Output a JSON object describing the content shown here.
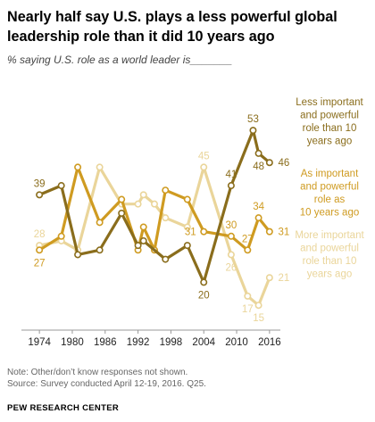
{
  "title": "Nearly half say U.S. plays a less powerful global leadership role than it did 10 years ago",
  "subtitle": "% saying U.S. role as a world leader is_______",
  "notes": {
    "note": "Note: Other/don’t know responses not shown.",
    "source": "Source: Survey conducted April 12-19, 2016. Q25.",
    "org": "PEW RESEARCH CENTER"
  },
  "colors": {
    "less": "#8a6d1c",
    "same": "#cf9b21",
    "more": "#ead59a",
    "axis": "#999999"
  },
  "chart_data": {
    "type": "line",
    "xlabel": "",
    "ylabel": "",
    "x_ticks": [
      "1974",
      "1980",
      "1986",
      "1992",
      "1998",
      "2004",
      "2010",
      "2016"
    ],
    "xlim": [
      1973,
      2017
    ],
    "ylim": [
      10,
      60
    ],
    "grid": false,
    "series": [
      {
        "key": "less",
        "name_lines": [
          "Less important",
          "and powerful",
          "role than 10",
          "years ago"
        ],
        "points": [
          {
            "x": 1974,
            "y": 39
          },
          {
            "x": 1978,
            "y": 41
          },
          {
            "x": 1981,
            "y": 26
          },
          {
            "x": 1985,
            "y": 27
          },
          {
            "x": 1989,
            "y": 35
          },
          {
            "x": 1992,
            "y": 28
          },
          {
            "x": 1993,
            "y": 29
          },
          {
            "x": 1997,
            "y": 25
          },
          {
            "x": 2001,
            "y": 28
          },
          {
            "x": 2004,
            "y": 20
          },
          {
            "x": 2009,
            "y": 41
          },
          {
            "x": 2013,
            "y": 53
          },
          {
            "x": 2014,
            "y": 48
          },
          {
            "x": 2016,
            "y": 46
          }
        ],
        "labels": [
          {
            "x": 1974,
            "text": "39",
            "pos": "above"
          },
          {
            "x": 2004,
            "text": "20",
            "pos": "below"
          },
          {
            "x": 2009,
            "text": "41",
            "pos": "above"
          },
          {
            "x": 2013,
            "text": "53",
            "pos": "above"
          },
          {
            "x": 2014,
            "text": "48",
            "pos": "below"
          },
          {
            "x": 2016,
            "text": "46",
            "pos": "right"
          }
        ]
      },
      {
        "key": "same",
        "name_lines": [
          "As important",
          "and powerful",
          "role as",
          "10 years ago"
        ],
        "points": [
          {
            "x": 1974,
            "y": 27
          },
          {
            "x": 1978,
            "y": 30
          },
          {
            "x": 1981,
            "y": 45
          },
          {
            "x": 1985,
            "y": 33
          },
          {
            "x": 1989,
            "y": 38
          },
          {
            "x": 1992,
            "y": 27
          },
          {
            "x": 1993,
            "y": 32
          },
          {
            "x": 1995,
            "y": 27
          },
          {
            "x": 1997,
            "y": 40
          },
          {
            "x": 2001,
            "y": 38
          },
          {
            "x": 2004,
            "y": 31
          },
          {
            "x": 2009,
            "y": 30
          },
          {
            "x": 2012,
            "y": 27
          },
          {
            "x": 2014,
            "y": 34
          },
          {
            "x": 2016,
            "y": 31
          }
        ],
        "labels": [
          {
            "x": 1974,
            "text": "27",
            "pos": "below"
          },
          {
            "x": 2004,
            "text": "31",
            "pos": "left"
          },
          {
            "x": 2009,
            "text": "30",
            "pos": "above"
          },
          {
            "x": 2012,
            "text": "27",
            "pos": "above"
          },
          {
            "x": 2014,
            "text": "34",
            "pos": "above"
          },
          {
            "x": 2016,
            "text": "31",
            "pos": "right"
          }
        ]
      },
      {
        "key": "more",
        "name_lines": [
          "More important",
          "and powerful",
          "role than 10",
          "years ago"
        ],
        "points": [
          {
            "x": 1974,
            "y": 28
          },
          {
            "x": 1978,
            "y": 29
          },
          {
            "x": 1981,
            "y": 27
          },
          {
            "x": 1985,
            "y": 45
          },
          {
            "x": 1989,
            "y": 37
          },
          {
            "x": 1992,
            "y": 37
          },
          {
            "x": 1993,
            "y": 39
          },
          {
            "x": 1995,
            "y": 37
          },
          {
            "x": 1997,
            "y": 34
          },
          {
            "x": 2001,
            "y": 32
          },
          {
            "x": 2004,
            "y": 45
          },
          {
            "x": 2009,
            "y": 26
          },
          {
            "x": 2012,
            "y": 17
          },
          {
            "x": 2014,
            "y": 15
          },
          {
            "x": 2016,
            "y": 21
          }
        ],
        "labels": [
          {
            "x": 1974,
            "text": "28",
            "pos": "above"
          },
          {
            "x": 2004,
            "text": "45",
            "pos": "above"
          },
          {
            "x": 2009,
            "text": "26",
            "pos": "below"
          },
          {
            "x": 2012,
            "text": "17",
            "pos": "below"
          },
          {
            "x": 2014,
            "text": "15",
            "pos": "below"
          },
          {
            "x": 2016,
            "text": "21",
            "pos": "right"
          }
        ]
      }
    ]
  }
}
